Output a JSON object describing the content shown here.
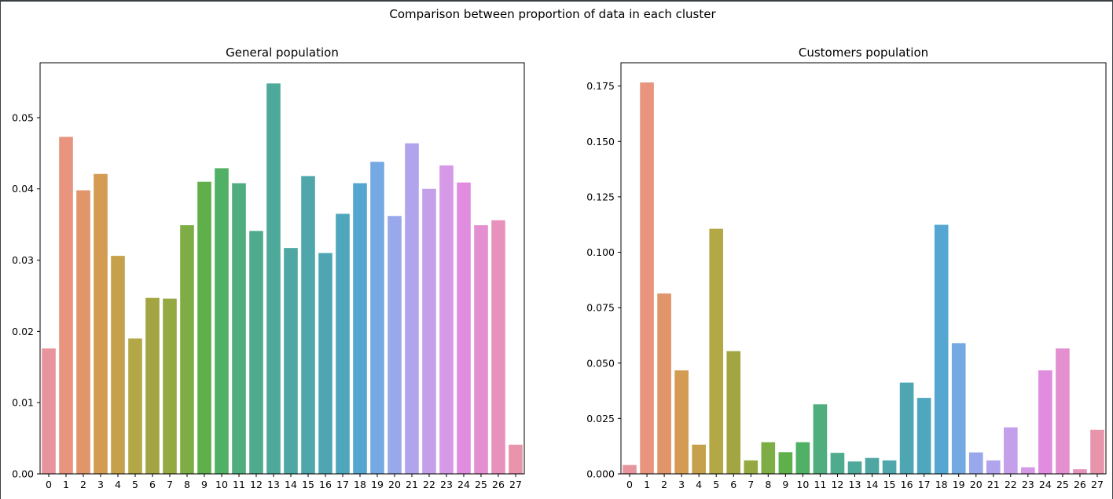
{
  "figure": {
    "suptitle": "Comparison between proportion of data in each cluster",
    "palette": [
      "#e8949c",
      "#e8947f",
      "#e0956a",
      "#d49b52",
      "#c6a14c",
      "#b4a846",
      "#a3a543",
      "#95a943",
      "#7fad45",
      "#5fb04b",
      "#50b065",
      "#4fad7e",
      "#4fab8e",
      "#4ea99a",
      "#4fa7a4",
      "#4fa6ab",
      "#4fa6b3",
      "#4fa7be",
      "#55a6d0",
      "#74a9e3",
      "#98a8ea",
      "#b2a4ec",
      "#c5a0ea",
      "#d699e7",
      "#e08de0",
      "#e48fcf",
      "#e792bd",
      "#e894ab"
    ]
  },
  "chart_data": [
    {
      "type": "bar",
      "title": "General population",
      "xlabel": "",
      "ylabel": "",
      "ylim": [
        0,
        0.0577
      ],
      "yticks": [
        "0.00",
        "0.01",
        "0.02",
        "0.03",
        "0.04",
        "0.05"
      ],
      "categories": [
        "0",
        "1",
        "2",
        "3",
        "4",
        "5",
        "6",
        "7",
        "8",
        "9",
        "10",
        "11",
        "12",
        "13",
        "14",
        "15",
        "16",
        "17",
        "18",
        "19",
        "20",
        "21",
        "22",
        "23",
        "24",
        "25",
        "26",
        "27"
      ],
      "values": [
        0.0176,
        0.0473,
        0.0398,
        0.0421,
        0.0306,
        0.019,
        0.0247,
        0.0246,
        0.0349,
        0.041,
        0.0429,
        0.0408,
        0.0341,
        0.0548,
        0.0317,
        0.0418,
        0.031,
        0.0365,
        0.0408,
        0.0438,
        0.0362,
        0.0464,
        0.04,
        0.0433,
        0.0409,
        0.0349,
        0.0356,
        0.0041
      ]
    },
    {
      "type": "bar",
      "title": "Customers population",
      "xlabel": "",
      "ylabel": "",
      "ylim": [
        0,
        0.1855
      ],
      "yticks": [
        "0.000",
        "0.025",
        "0.050",
        "0.075",
        "0.100",
        "0.125",
        "0.150",
        "0.175"
      ],
      "categories": [
        "0",
        "1",
        "2",
        "3",
        "4",
        "5",
        "6",
        "7",
        "8",
        "9",
        "10",
        "11",
        "12",
        "13",
        "14",
        "15",
        "16",
        "17",
        "18",
        "19",
        "20",
        "21",
        "22",
        "23",
        "24",
        "25",
        "26",
        "27"
      ],
      "values": [
        0.004,
        0.1766,
        0.0814,
        0.0467,
        0.0132,
        0.1106,
        0.0554,
        0.0061,
        0.0143,
        0.0098,
        0.0143,
        0.0314,
        0.0095,
        0.0056,
        0.0072,
        0.0061,
        0.0412,
        0.0343,
        0.1124,
        0.059,
        0.0097,
        0.0061,
        0.021,
        0.003,
        0.0467,
        0.0566,
        0.0021,
        0.0199
      ]
    }
  ]
}
